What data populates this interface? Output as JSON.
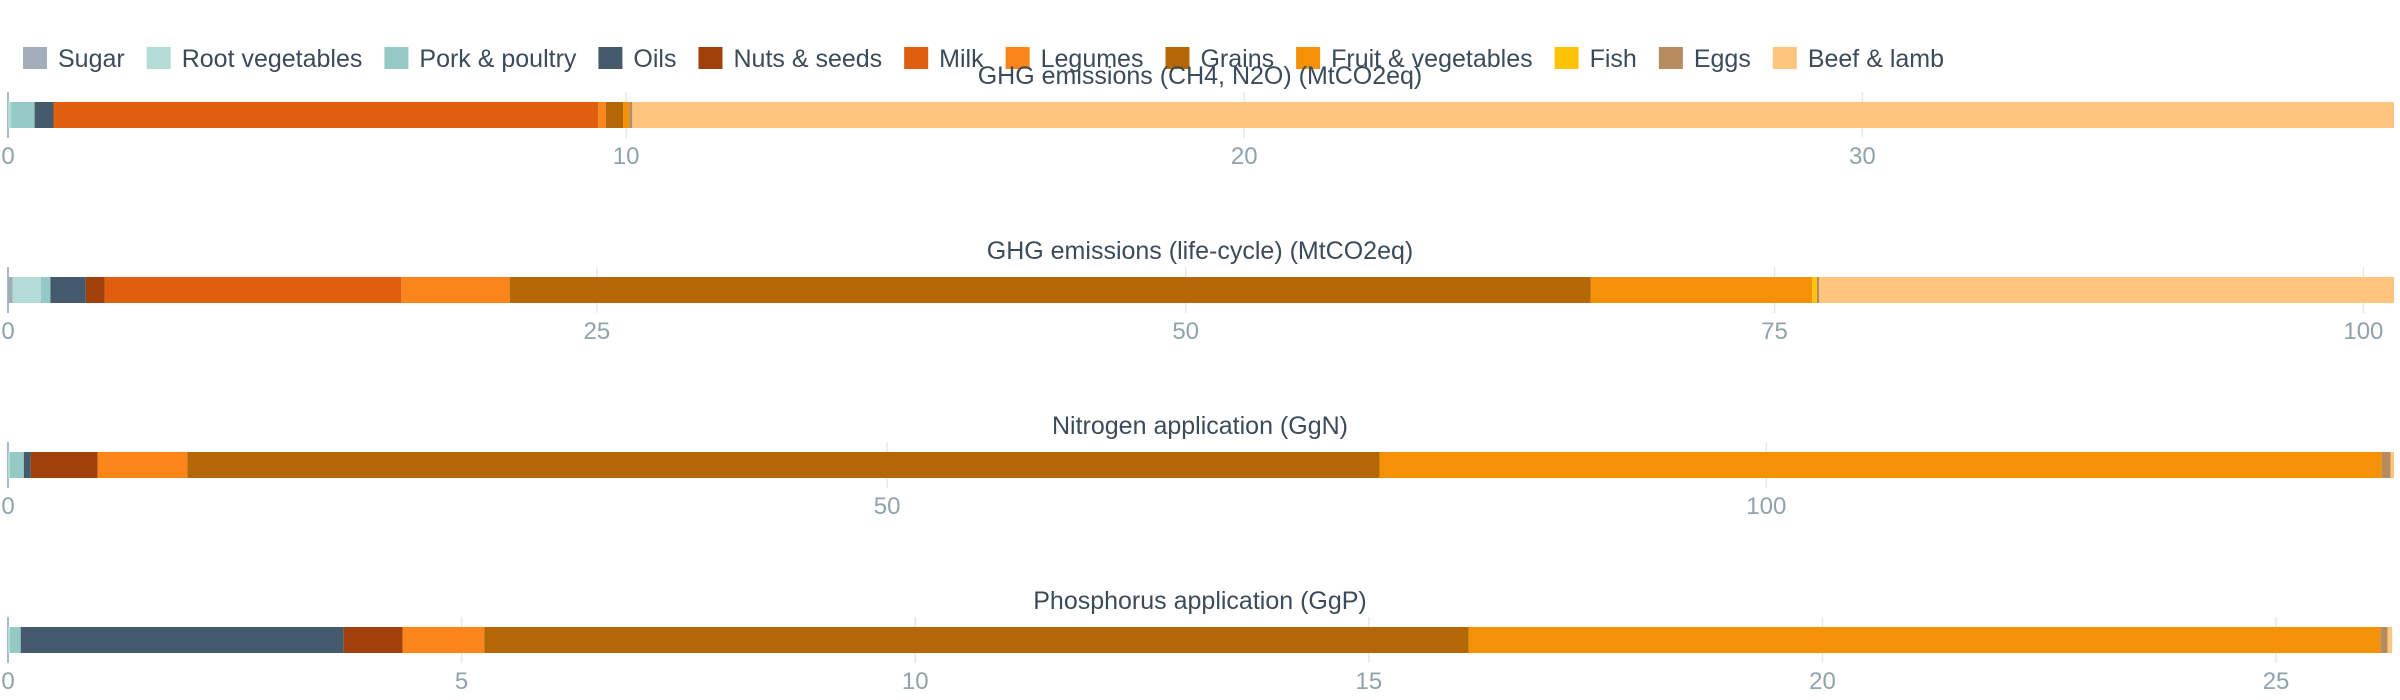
{
  "chart_data": {
    "type": "bar",
    "orientation": "horizontal",
    "stacked": true,
    "grid": true,
    "legend_position": "top-left",
    "legend": [
      {
        "name": "Sugar",
        "color": "#a2adb9"
      },
      {
        "name": "Root vegetables",
        "color": "#b3dcd9"
      },
      {
        "name": "Pork & poultry",
        "color": "#94c9c6"
      },
      {
        "name": "Oils",
        "color": "#455a6c"
      },
      {
        "name": "Nuts & seeds",
        "color": "#a0410b"
      },
      {
        "name": "Milk",
        "color": "#e05f0e"
      },
      {
        "name": "Legumes",
        "color": "#fb8519"
      },
      {
        "name": "Grains",
        "color": "#b46805"
      },
      {
        "name": "Fruit & vegetables",
        "color": "#f49107"
      },
      {
        "name": "Fish",
        "color": "#fec206"
      },
      {
        "name": "Eggs",
        "color": "#b68b5e"
      },
      {
        "name": "Beef & lamb",
        "color": "#fec57e"
      }
    ],
    "panels": [
      {
        "title": "GHG emissions (CH4, N2O) (MtCO2eq)",
        "xlim": [
          0,
          38.6
        ],
        "ticks": [
          0,
          10,
          20,
          30
        ],
        "tick_labels": [
          "0",
          "10",
          "20",
          "30"
        ],
        "segments": [
          {
            "name": "Sugar",
            "value": 0
          },
          {
            "name": "Root vegetables",
            "value": 0.05
          },
          {
            "name": "Pork & poultry",
            "value": 0.38
          },
          {
            "name": "Oils",
            "value": 0.3
          },
          {
            "name": "Nuts & seeds",
            "value": 0.02
          },
          {
            "name": "Milk",
            "value": 8.8
          },
          {
            "name": "Legumes",
            "value": 0.12
          },
          {
            "name": "Grains",
            "value": 0.28
          },
          {
            "name": "Fruit & vegetables",
            "value": 0.1
          },
          {
            "name": "Fish",
            "value": 0
          },
          {
            "name": "Eggs",
            "value": 0.05
          },
          {
            "name": "Beef & lamb",
            "value": 28.5
          }
        ]
      },
      {
        "title": "GHG emissions (life-cycle) (MtCO2eq)",
        "xlim": [
          0,
          101.3
        ],
        "ticks": [
          0,
          25,
          50,
          75,
          100
        ],
        "tick_labels": [
          "0",
          "25",
          "50",
          "75",
          "100"
        ],
        "segments": [
          {
            "name": "Sugar",
            "value": 0.2
          },
          {
            "name": "Root vegetables",
            "value": 1.2
          },
          {
            "name": "Pork & poultry",
            "value": 0.4
          },
          {
            "name": "Oils",
            "value": 1.5
          },
          {
            "name": "Nuts & seeds",
            "value": 0.8
          },
          {
            "name": "Milk",
            "value": 12.6
          },
          {
            "name": "Legumes",
            "value": 4.6
          },
          {
            "name": "Grains",
            "value": 45.9
          },
          {
            "name": "Fruit & vegetables",
            "value": 9.4
          },
          {
            "name": "Fish",
            "value": 0.2
          },
          {
            "name": "Eggs",
            "value": 0.1
          },
          {
            "name": "Beef & lamb",
            "value": 24.4
          }
        ]
      },
      {
        "title": "Nitrogen application (GgN)",
        "xlim": [
          0,
          135.7
        ],
        "ticks": [
          0,
          50,
          100
        ],
        "tick_labels": [
          "0",
          "50",
          "100"
        ],
        "segments": [
          {
            "name": "Sugar",
            "value": 0
          },
          {
            "name": "Root vegetables",
            "value": 0.1
          },
          {
            "name": "Pork & poultry",
            "value": 0.8
          },
          {
            "name": "Oils",
            "value": 0.4
          },
          {
            "name": "Nuts & seeds",
            "value": 3.8
          },
          {
            "name": "Milk",
            "value": 0
          },
          {
            "name": "Legumes",
            "value": 5.1
          },
          {
            "name": "Grains",
            "value": 67.8
          },
          {
            "name": "Fruit & vegetables",
            "value": 57.0
          },
          {
            "name": "Fish",
            "value": 0
          },
          {
            "name": "Eggs",
            "value": 0.5
          },
          {
            "name": "Beef & lamb",
            "value": 0.2
          }
        ]
      },
      {
        "title": "Phosphorus application (GgP)",
        "xlim": [
          0,
          26.3
        ],
        "ticks": [
          0,
          5,
          10,
          15,
          20,
          25
        ],
        "tick_labels": [
          "0",
          "5",
          "10",
          "15",
          "20",
          "25"
        ],
        "segments": [
          {
            "name": "Sugar",
            "value": 0
          },
          {
            "name": "Root vegetables",
            "value": 0.02
          },
          {
            "name": "Pork & poultry",
            "value": 0.12
          },
          {
            "name": "Oils",
            "value": 3.56
          },
          {
            "name": "Nuts & seeds",
            "value": 0.65
          },
          {
            "name": "Milk",
            "value": 0
          },
          {
            "name": "Legumes",
            "value": 0.9
          },
          {
            "name": "Grains",
            "value": 10.85
          },
          {
            "name": "Fruit & vegetables",
            "value": 10.05
          },
          {
            "name": "Fish",
            "value": 0
          },
          {
            "name": "Eggs",
            "value": 0.08
          },
          {
            "name": "Beef & lamb",
            "value": 0.05
          }
        ]
      }
    ]
  }
}
